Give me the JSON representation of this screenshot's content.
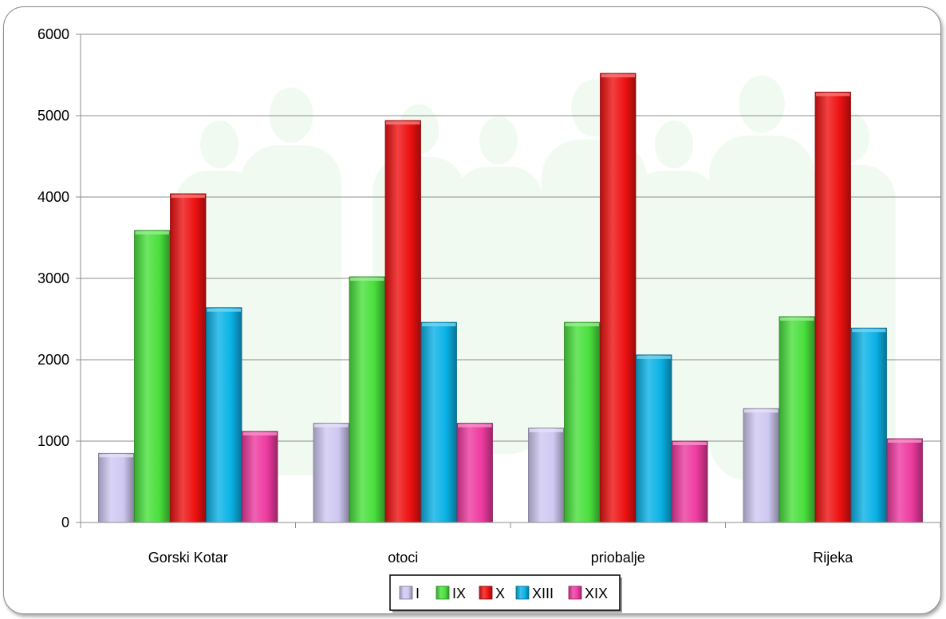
{
  "chart_data": {
    "type": "bar",
    "title": "",
    "xlabel": "",
    "ylabel": "",
    "categories": [
      "Gorski Kotar",
      "otoci",
      "priobalje",
      "Rijeka"
    ],
    "series": [
      {
        "name": "I",
        "color": "#cfc8f2",
        "values": [
          850,
          1220,
          1160,
          1400
        ]
      },
      {
        "name": "IX",
        "color": "#49e03c",
        "values": [
          3590,
          3020,
          2460,
          2530
        ]
      },
      {
        "name": "X",
        "color": "#ee1111",
        "values": [
          4040,
          4940,
          5520,
          5290
        ]
      },
      {
        "name": "XIII",
        "color": "#0ab2e6",
        "values": [
          2640,
          2460,
          2060,
          2390
        ]
      },
      {
        "name": "XIX",
        "color": "#ee3aa0",
        "values": [
          1120,
          1220,
          1000,
          1030
        ]
      }
    ],
    "ylim": [
      0,
      6000
    ],
    "yticks": [
      0,
      1000,
      2000,
      3000,
      4000,
      5000,
      6000
    ],
    "grid": true,
    "legend_position": "bottom"
  }
}
